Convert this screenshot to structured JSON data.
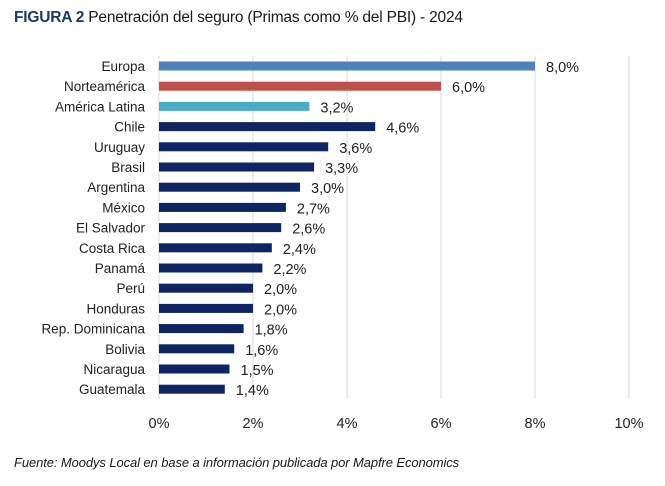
{
  "chart_data": {
    "type": "bar",
    "orientation": "horizontal",
    "title_prefix": "FIGURA 2",
    "title": "Penetración del seguro (Primas como % del PBI) - 2024",
    "xlabel": "",
    "ylabel": "",
    "categories": [
      "Europa",
      "Norteamérica",
      "América Latina",
      "Chile",
      "Uruguay",
      "Brasil",
      "Argentina",
      "México",
      "El Salvador",
      "Costa Rica",
      "Panamá",
      "Perú",
      "Honduras",
      "Rep. Dominicana",
      "Bolivia",
      "Nicaragua",
      "Guatemala"
    ],
    "values": [
      8.0,
      6.0,
      3.2,
      4.6,
      3.6,
      3.3,
      3.0,
      2.7,
      2.6,
      2.4,
      2.2,
      2.0,
      2.0,
      1.8,
      1.6,
      1.5,
      1.4
    ],
    "value_labels": [
      "8,0%",
      "6,0%",
      "3,2%",
      "4,6%",
      "3,6%",
      "3,3%",
      "3,0%",
      "2,7%",
      "2,6%",
      "2,4%",
      "2,2%",
      "2,0%",
      "2,0%",
      "1,8%",
      "1,6%",
      "1,5%",
      "1,4%"
    ],
    "bar_colors": [
      "#4F81BD",
      "#C0504D",
      "#4BACC6",
      "#0F2462",
      "#0F2462",
      "#0F2462",
      "#0F2462",
      "#0F2462",
      "#0F2462",
      "#0F2462",
      "#0F2462",
      "#0F2462",
      "#0F2462",
      "#0F2462",
      "#0F2462",
      "#0F2462",
      "#0F2462"
    ],
    "xlim": [
      0,
      10
    ],
    "x_ticks": [
      0,
      2,
      4,
      6,
      8,
      10
    ],
    "x_tick_labels": [
      "0%",
      "2%",
      "4%",
      "6%",
      "8%",
      "10%"
    ],
    "grid": "vertical",
    "legend": "none"
  },
  "source": "Fuente: Moodys Local en base a información publicada por Mapfre Economics"
}
